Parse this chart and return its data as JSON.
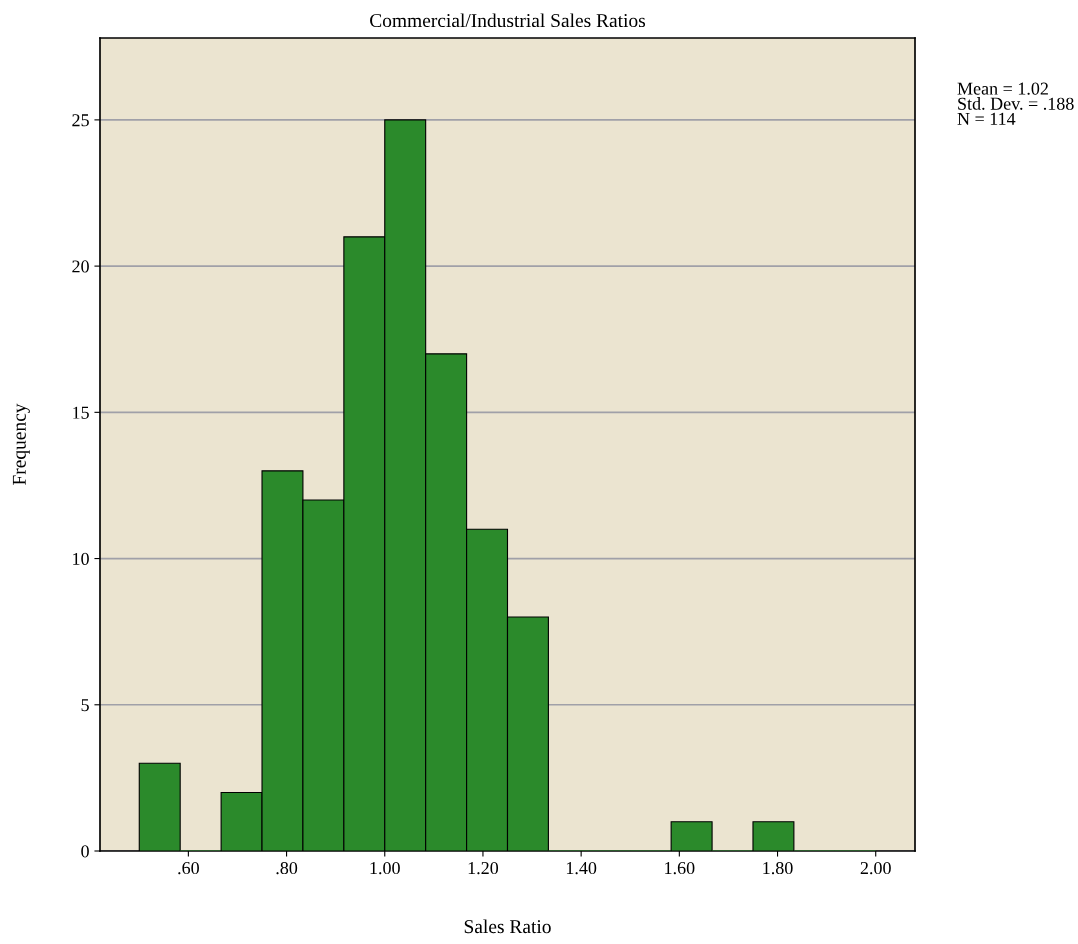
{
  "chart_data": {
    "type": "histogram",
    "title": "Commercial/Industrial Sales Ratios",
    "xlabel": "Sales Ratio",
    "ylabel": "Frequency",
    "bins": [
      0.5,
      0.5833,
      0.6667,
      0.75,
      0.8333,
      0.9167,
      1.0,
      1.0833,
      1.1667,
      1.25,
      1.3333,
      1.4167,
      1.5,
      1.5833,
      1.6667,
      1.75,
      1.8333,
      1.9167,
      2.0
    ],
    "values": [
      3,
      0,
      2,
      13,
      12,
      21,
      25,
      17,
      11,
      8,
      0,
      0,
      0,
      1,
      0,
      1,
      0,
      0
    ],
    "color": "#2b8a2b",
    "xlim": [
      0.42,
      2.08
    ],
    "xticks": [
      {
        "value": 0.6,
        "label": ".60"
      },
      {
        "value": 0.8,
        "label": ".80"
      },
      {
        "value": 1.0,
        "label": "1.00"
      },
      {
        "value": 1.2,
        "label": "1.20"
      },
      {
        "value": 1.4,
        "label": "1.40"
      },
      {
        "value": 1.6,
        "label": "1.60"
      },
      {
        "value": 1.8,
        "label": "1.80"
      },
      {
        "value": 2.0,
        "label": "2.00"
      }
    ],
    "ylim": [
      0,
      27.8
    ],
    "yticks": [
      0,
      5,
      10,
      15,
      20,
      25
    ],
    "grid": "y",
    "annotations": [
      "Mean = 1.02\nStd. Dev. = .188\nN = 114"
    ]
  }
}
